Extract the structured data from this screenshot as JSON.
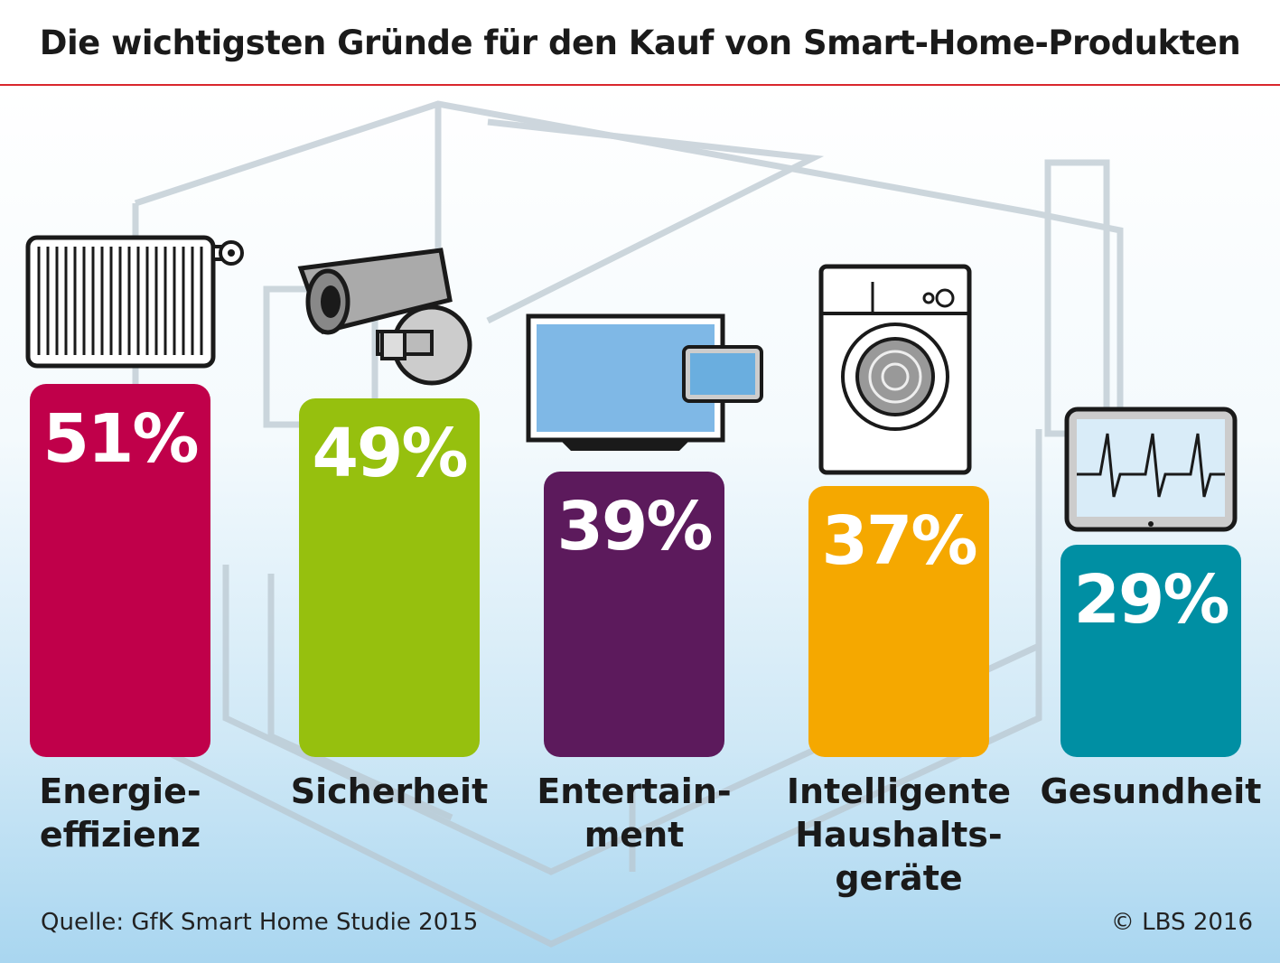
{
  "chart_data": {
    "type": "bar",
    "title": "Die wichtigsten Gründe für den Kauf von Smart-Home-Produkten",
    "categories": [
      "Energie-\neffizienz",
      "Sicherheit",
      "Entertain-\nment",
      "Intelligente\nHaushalts-\ngeräte",
      "Gesundheit"
    ],
    "values": [
      51,
      49,
      39,
      37,
      29
    ],
    "value_labels": [
      "51%",
      "49%",
      "39%",
      "37%",
      "29%"
    ],
    "colors": [
      "#c0004a",
      "#96c00e",
      "#5c1a5c",
      "#f5a800",
      "#008fa3"
    ],
    "icons": [
      "radiator-icon",
      "security-camera-icon",
      "tv-tablet-icon",
      "washing-machine-icon",
      "heart-monitor-tablet-icon"
    ],
    "unit": "%",
    "ylim": [
      0,
      100
    ]
  },
  "footer": {
    "source": "Quelle: GfK Smart Home Studie 2015",
    "copyright": "© LBS 2016"
  }
}
